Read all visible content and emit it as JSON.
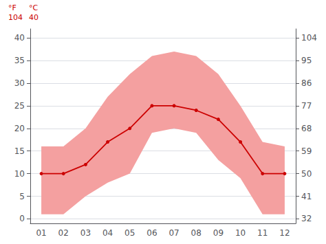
{
  "chart_data": {
    "type": "line",
    "categories": [
      "01",
      "02",
      "03",
      "04",
      "05",
      "06",
      "07",
      "08",
      "09",
      "10",
      "11",
      "12"
    ],
    "series": [
      {
        "type": "band",
        "color": "#f4a0a0",
        "low": [
          1,
          1,
          5,
          8,
          10,
          19,
          20,
          19,
          13,
          9,
          1,
          1
        ],
        "high": [
          16,
          16,
          20,
          27,
          32,
          36,
          37,
          36,
          32,
          25,
          17,
          16
        ]
      },
      {
        "type": "line",
        "color": "#cc0000",
        "marker": "circle",
        "values": [
          10,
          10,
          12,
          17,
          20,
          25,
          25,
          24,
          22,
          17,
          10,
          10
        ]
      }
    ],
    "ylim": [
      -1,
      42
    ],
    "yticks": [
      0,
      5,
      10,
      15,
      20,
      25,
      30,
      35,
      40
    ],
    "y2lim": [
      30.2,
      107.6
    ],
    "y2ticks": [
      32,
      41,
      50,
      59,
      68,
      77,
      86,
      95,
      104
    ],
    "annotations": [
      "°F",
      "°C",
      "104",
      "40"
    ],
    "grid": true
  }
}
